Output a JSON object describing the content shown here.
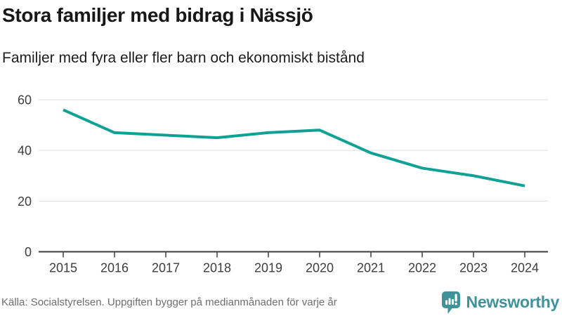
{
  "header": {
    "title": "Stora familjer med bidrag i Nässjö",
    "subtitle": "Familjer med fyra eller fler barn och ekonomiskt bistånd"
  },
  "chart_data": {
    "type": "line",
    "title": "Stora familjer med bidrag i Nässjö",
    "subtitle": "Familjer med fyra eller fler barn och ekonomiskt bistånd",
    "x": [
      2015,
      2016,
      2017,
      2018,
      2019,
      2020,
      2021,
      2022,
      2023,
      2024
    ],
    "values": [
      56,
      47,
      46,
      45,
      47,
      48,
      39,
      33,
      30,
      26
    ],
    "series_name": "Familjer med fyra eller fler barn och ekonomiskt bistånd i Nässjö",
    "xlabel": "",
    "ylabel": "",
    "ylim": [
      0,
      60
    ],
    "yticks": [
      0,
      20,
      40,
      60
    ],
    "grid": "horizontal",
    "legend": "none",
    "line_color": "#0fa294",
    "gridline_color": "#dcdcdc",
    "axis_color": "#3c3c3c",
    "tick_label_color": "#3d3d3d"
  },
  "footer": {
    "source": "Källa: Socialstyrelsen. Uppgiften bygger på medianmånaden för varje år",
    "brand": "Newsworthy",
    "brand_color": "#3d9399"
  }
}
